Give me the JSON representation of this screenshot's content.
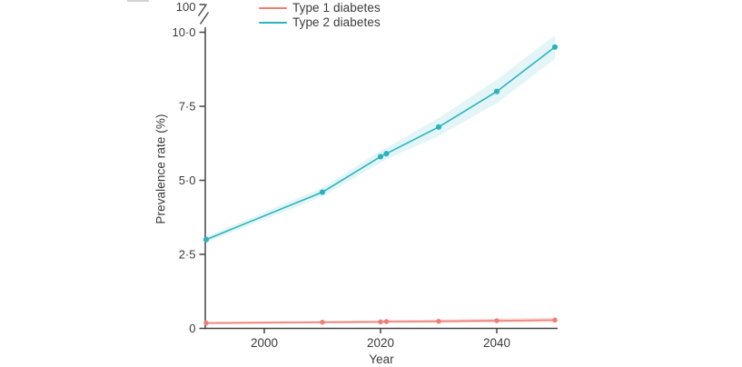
{
  "chart_data": {
    "type": "line",
    "title": "",
    "xlabel": "Year",
    "ylabel": "Prevalence rate (%)",
    "x": [
      1990,
      2010,
      2020,
      2021,
      2030,
      2040,
      2050
    ],
    "series": [
      {
        "name": "Type 1 diabetes",
        "color": "#ef7d72",
        "band_color": "rgba(239,125,114,0.25)",
        "values": [
          0.18,
          0.21,
          0.22,
          0.23,
          0.24,
          0.26,
          0.28
        ],
        "upper": [
          0.22,
          0.25,
          0.27,
          0.28,
          0.3,
          0.33,
          0.36
        ],
        "lower": [
          0.14,
          0.17,
          0.18,
          0.18,
          0.19,
          0.2,
          0.21
        ]
      },
      {
        "name": "Type 2 diabetes",
        "color": "#29b4bd",
        "band_color": "rgba(41,180,189,0.13)",
        "values": [
          3.0,
          4.6,
          5.8,
          5.9,
          6.8,
          8.0,
          9.5
        ],
        "upper": [
          3.1,
          4.75,
          6.0,
          6.1,
          7.1,
          8.4,
          9.9
        ],
        "lower": [
          2.9,
          4.45,
          5.6,
          5.7,
          6.5,
          7.6,
          9.1
        ]
      }
    ],
    "x_axis": {
      "tick_values": [
        2000,
        2020,
        2040
      ],
      "tick_labels": [
        "2000",
        "2020",
        "2040"
      ],
      "range": [
        1990,
        2050
      ]
    },
    "y_axis": {
      "tick_values": [
        0,
        2.5,
        5,
        7.5,
        10
      ],
      "tick_labels": [
        "0",
        "2·5",
        "5·0",
        "7·5",
        "10·0"
      ],
      "break_label": "100",
      "range": [
        0,
        10
      ]
    },
    "legend_position": "top-left",
    "grid": false
  },
  "colors": {
    "axis": "#454545",
    "text": "#3b3b3b"
  }
}
